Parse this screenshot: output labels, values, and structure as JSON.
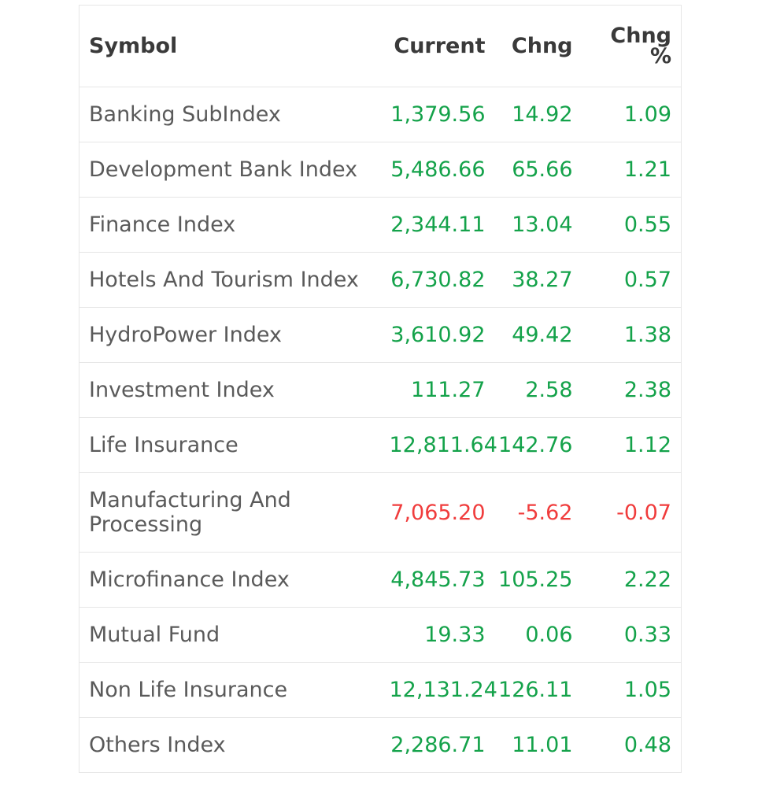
{
  "table": {
    "headers": {
      "symbol": "Symbol",
      "current": "Current",
      "chng": "Chng",
      "chng_pct_line1": "Chng",
      "chng_pct_line2": "%"
    },
    "rows": [
      {
        "symbol": "Banking SubIndex",
        "current": "1,379.56",
        "chng": "14.92",
        "pct": "1.09",
        "trend": "up"
      },
      {
        "symbol": "Development Bank Index",
        "current": "5,486.66",
        "chng": "65.66",
        "pct": "1.21",
        "trend": "up"
      },
      {
        "symbol": "Finance Index",
        "current": "2,344.11",
        "chng": "13.04",
        "pct": "0.55",
        "trend": "up"
      },
      {
        "symbol": "Hotels And Tourism Index",
        "current": "6,730.82",
        "chng": "38.27",
        "pct": "0.57",
        "trend": "up"
      },
      {
        "symbol": "HydroPower Index",
        "current": "3,610.92",
        "chng": "49.42",
        "pct": "1.38",
        "trend": "up"
      },
      {
        "symbol": "Investment Index",
        "current": "111.27",
        "chng": "2.58",
        "pct": "2.38",
        "trend": "up"
      },
      {
        "symbol": "Life Insurance",
        "current": "12,811.64",
        "chng": "142.76",
        "pct": "1.12",
        "trend": "up"
      },
      {
        "symbol": "Manufacturing And Processing",
        "current": "7,065.20",
        "chng": "-5.62",
        "pct": "-0.07",
        "trend": "down"
      },
      {
        "symbol": "Microfinance Index",
        "current": "4,845.73",
        "chng": "105.25",
        "pct": "2.22",
        "trend": "up"
      },
      {
        "symbol": "Mutual Fund",
        "current": "19.33",
        "chng": "0.06",
        "pct": "0.33",
        "trend": "up"
      },
      {
        "symbol": "Non Life Insurance",
        "current": "12,131.24",
        "chng": "126.11",
        "pct": "1.05",
        "trend": "up"
      },
      {
        "symbol": "Others Index",
        "current": "2,286.71",
        "chng": "11.01",
        "pct": "0.48",
        "trend": "up"
      }
    ]
  },
  "colors": {
    "up": "#14a24a",
    "down": "#f03c3c",
    "header_text": "#3a3a3a",
    "symbol_text": "#5a5a5a",
    "border": "#e6e6e6"
  }
}
